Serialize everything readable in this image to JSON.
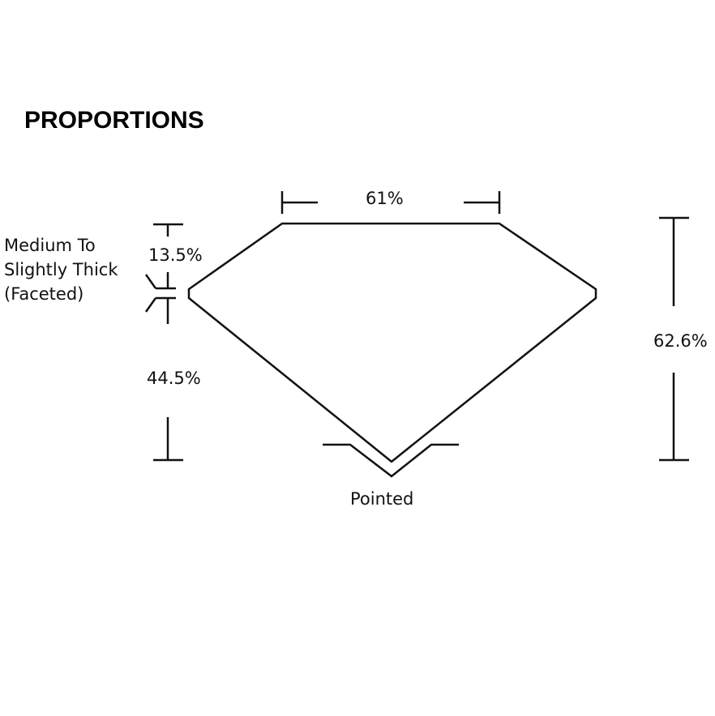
{
  "title": "PROPORTIONS",
  "table_pct": "61%",
  "crown_pct": "13.5%",
  "pavilion_pct": "44.5%",
  "total_depth_pct": "62.6%",
  "girdle_label": [
    "Medium To",
    "Slightly Thick",
    "(Faceted)"
  ],
  "culet_label": "Pointed",
  "colors": {
    "line": "#111111",
    "background": "#ffffff"
  }
}
